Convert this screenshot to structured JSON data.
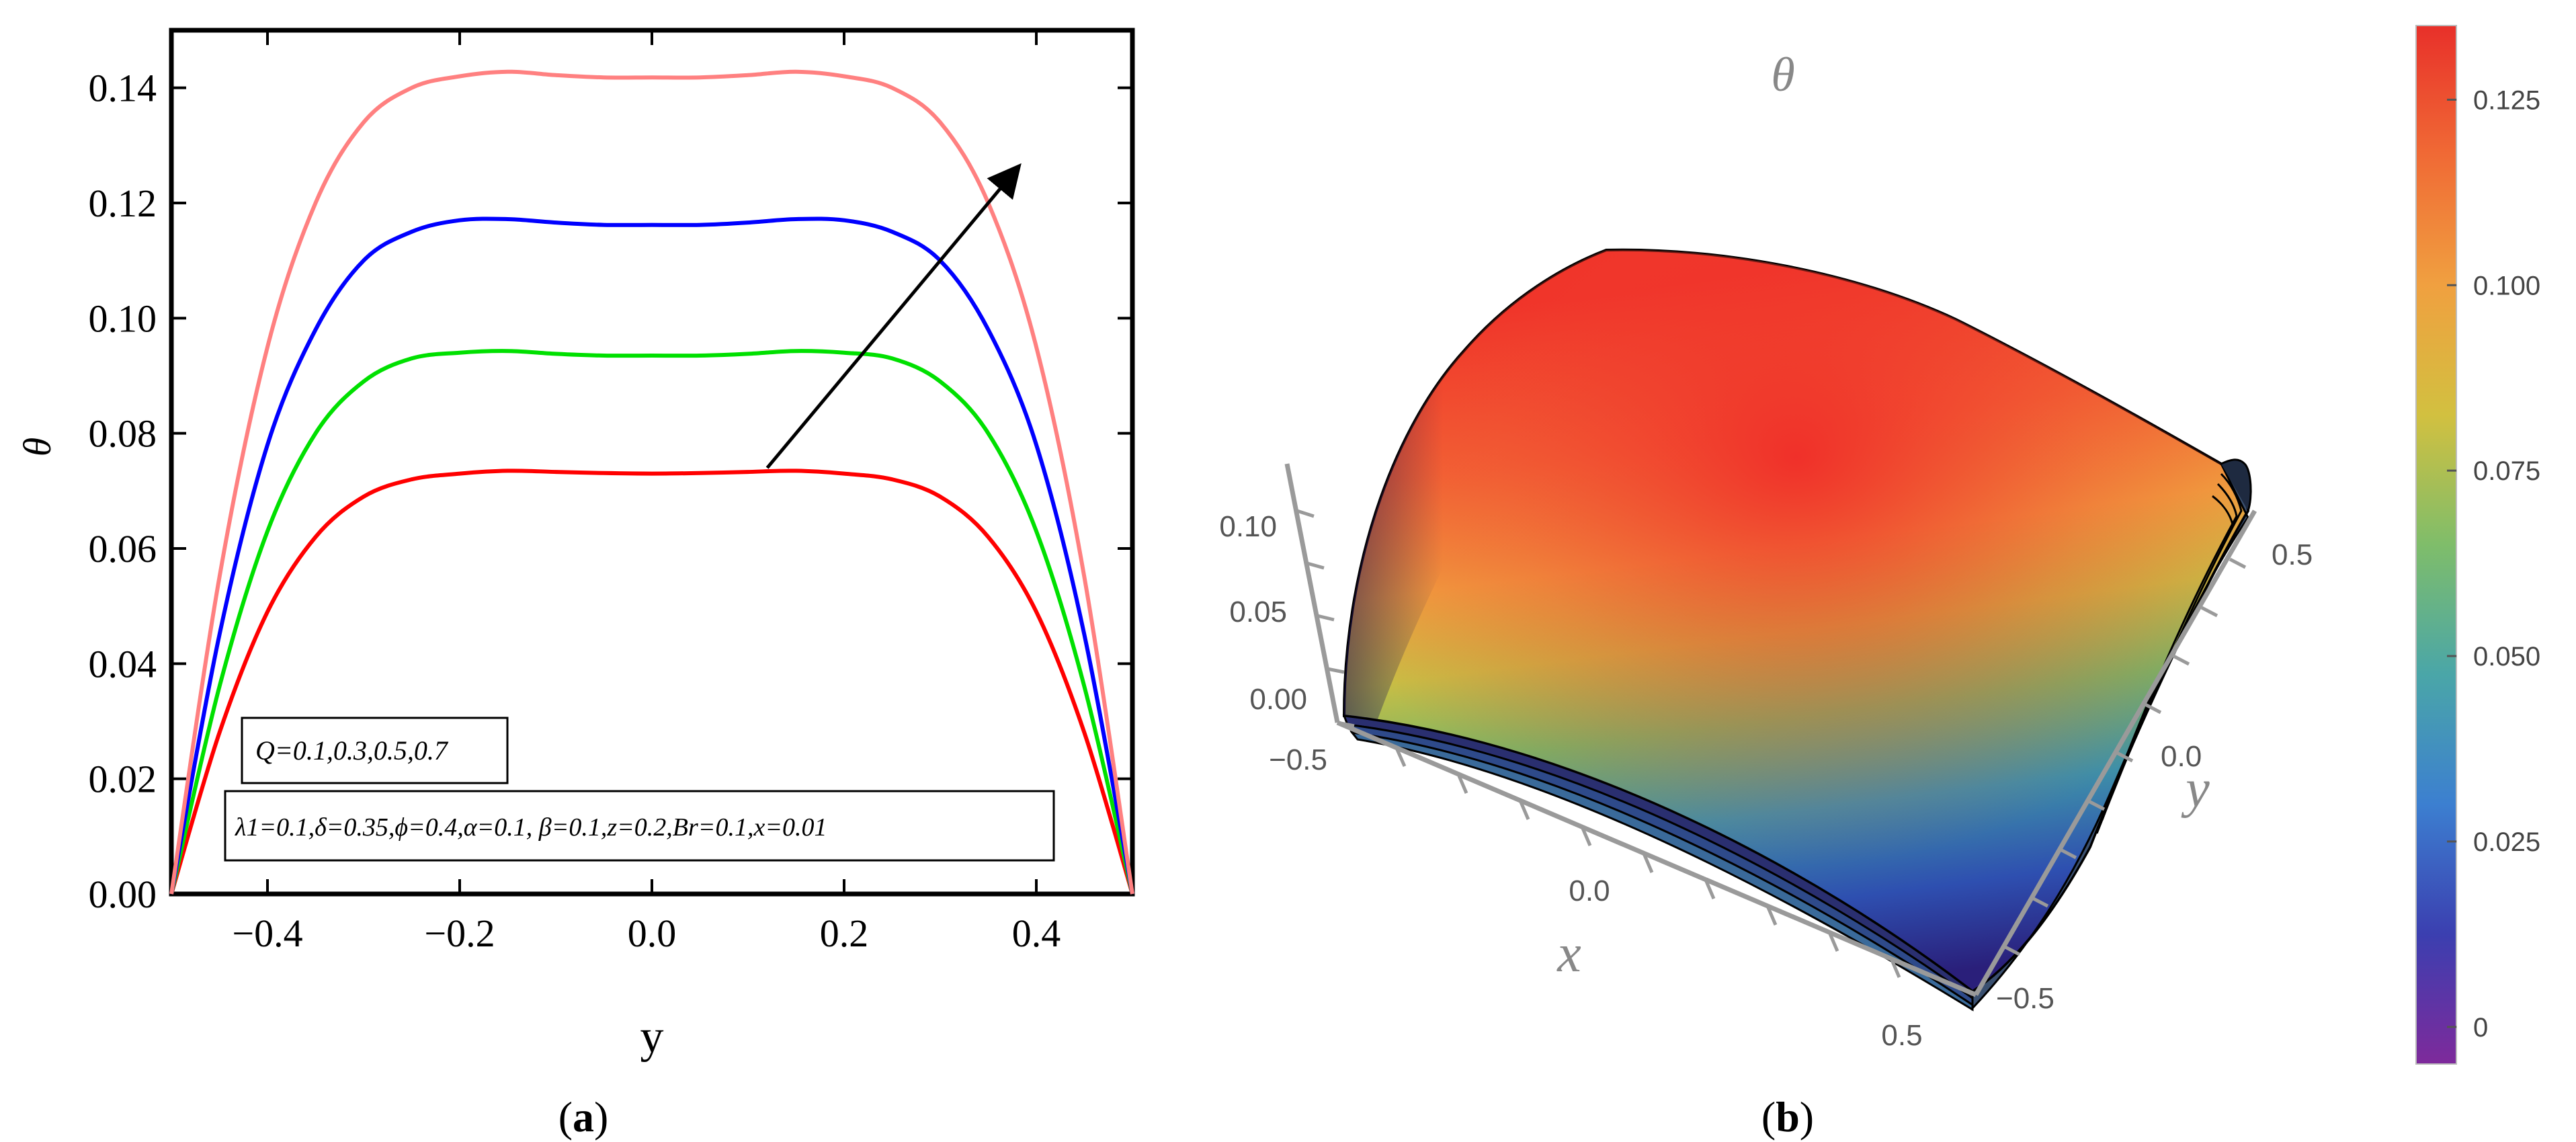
{
  "chart_data": [
    {
      "type": "line",
      "panel_label": "(a)",
      "panel_letter": "a",
      "xlabel": "y",
      "ylabel": "θ",
      "xlim": [
        -0.5,
        0.5
      ],
      "ylim": [
        0.0,
        0.15
      ],
      "x_ticks": [
        "−0.4",
        "−0.2",
        "0.0",
        "0.2",
        "0.4"
      ],
      "x_tick_values": [
        -0.4,
        -0.2,
        0.0,
        0.2,
        0.4
      ],
      "y_ticks": [
        "0.00",
        "0.02",
        "0.04",
        "0.06",
        "0.08",
        "0.10",
        "0.12",
        "0.14"
      ],
      "y_tick_values": [
        0.0,
        0.02,
        0.04,
        0.06,
        0.08,
        0.1,
        0.12,
        0.14
      ],
      "x": [
        -0.5,
        -0.45,
        -0.4,
        -0.35,
        -0.3,
        -0.25,
        -0.2,
        -0.15,
        -0.1,
        -0.05,
        0.0,
        0.05,
        0.1,
        0.15,
        0.2,
        0.25,
        0.3,
        0.35,
        0.4,
        0.45,
        0.5
      ],
      "series": [
        {
          "name": "Q=0.1",
          "color": "#ff0000",
          "values": [
            0.0,
            0.028,
            0.049,
            0.062,
            0.069,
            0.072,
            0.073,
            0.0735,
            0.0733,
            0.0731,
            0.073,
            0.0731,
            0.0733,
            0.0735,
            0.073,
            0.072,
            0.069,
            0.062,
            0.049,
            0.028,
            0.0
          ]
        },
        {
          "name": "Q=0.3",
          "color": "#00e000",
          "values": [
            0.0,
            0.036,
            0.063,
            0.08,
            0.089,
            0.093,
            0.094,
            0.0943,
            0.0938,
            0.0935,
            0.0935,
            0.0935,
            0.0938,
            0.0943,
            0.094,
            0.093,
            0.089,
            0.08,
            0.063,
            0.036,
            0.0
          ]
        },
        {
          "name": "Q=0.5",
          "color": "#0000ff",
          "values": [
            0.0,
            0.045,
            0.078,
            0.098,
            0.11,
            0.115,
            0.117,
            0.1172,
            0.1166,
            0.1162,
            0.1162,
            0.1162,
            0.1166,
            0.1172,
            0.117,
            0.115,
            0.11,
            0.098,
            0.078,
            0.045,
            0.0
          ]
        },
        {
          "name": "Q=0.7",
          "color": "#ff8080",
          "values": [
            0.0,
            0.055,
            0.095,
            0.12,
            0.134,
            0.14,
            0.142,
            0.1428,
            0.1422,
            0.1418,
            0.1418,
            0.1418,
            0.1422,
            0.1428,
            0.142,
            0.14,
            0.134,
            0.12,
            0.095,
            0.055,
            0.0
          ]
        }
      ],
      "arrow": {
        "from": [
          0.12,
          0.074
        ],
        "to": [
          0.38,
          0.126
        ],
        "meaning": "increasing Q"
      },
      "legend_q": "Q=0.1,0.3,0.5,0.7",
      "legend_params": "λ1=0.1,δ=0.35,ϕ=0.4,α=0.1, β=0.1,z=0.2,Br=0.1,x=0.01"
    },
    {
      "type": "surface",
      "panel_label": "(b)",
      "panel_letter": "b",
      "title": "θ",
      "xlabel": "x",
      "ylabel": "y",
      "x_ticks": [
        "−0.5",
        "0.0",
        "0.5"
      ],
      "y_ticks": [
        "−0.5",
        "0.0",
        "0.5"
      ],
      "z_ticks": [
        "0.00",
        "0.05",
        "0.10"
      ],
      "zlim": [
        0.0,
        0.135
      ],
      "colorbar": {
        "ticks": [
          "0",
          "0.025",
          "0.050",
          "0.075",
          "0.100",
          "0.125"
        ],
        "tick_values": [
          0.0,
          0.025,
          0.05,
          0.075,
          0.1,
          0.125
        ],
        "range": [
          -0.005,
          0.135
        ],
        "colors": [
          "#7e2a9b",
          "#3b3fb0",
          "#3c7fd0",
          "#4aa6a8",
          "#7fbd6a",
          "#d2c040",
          "#f0a040",
          "#f06a35",
          "#e8302a"
        ]
      }
    }
  ]
}
